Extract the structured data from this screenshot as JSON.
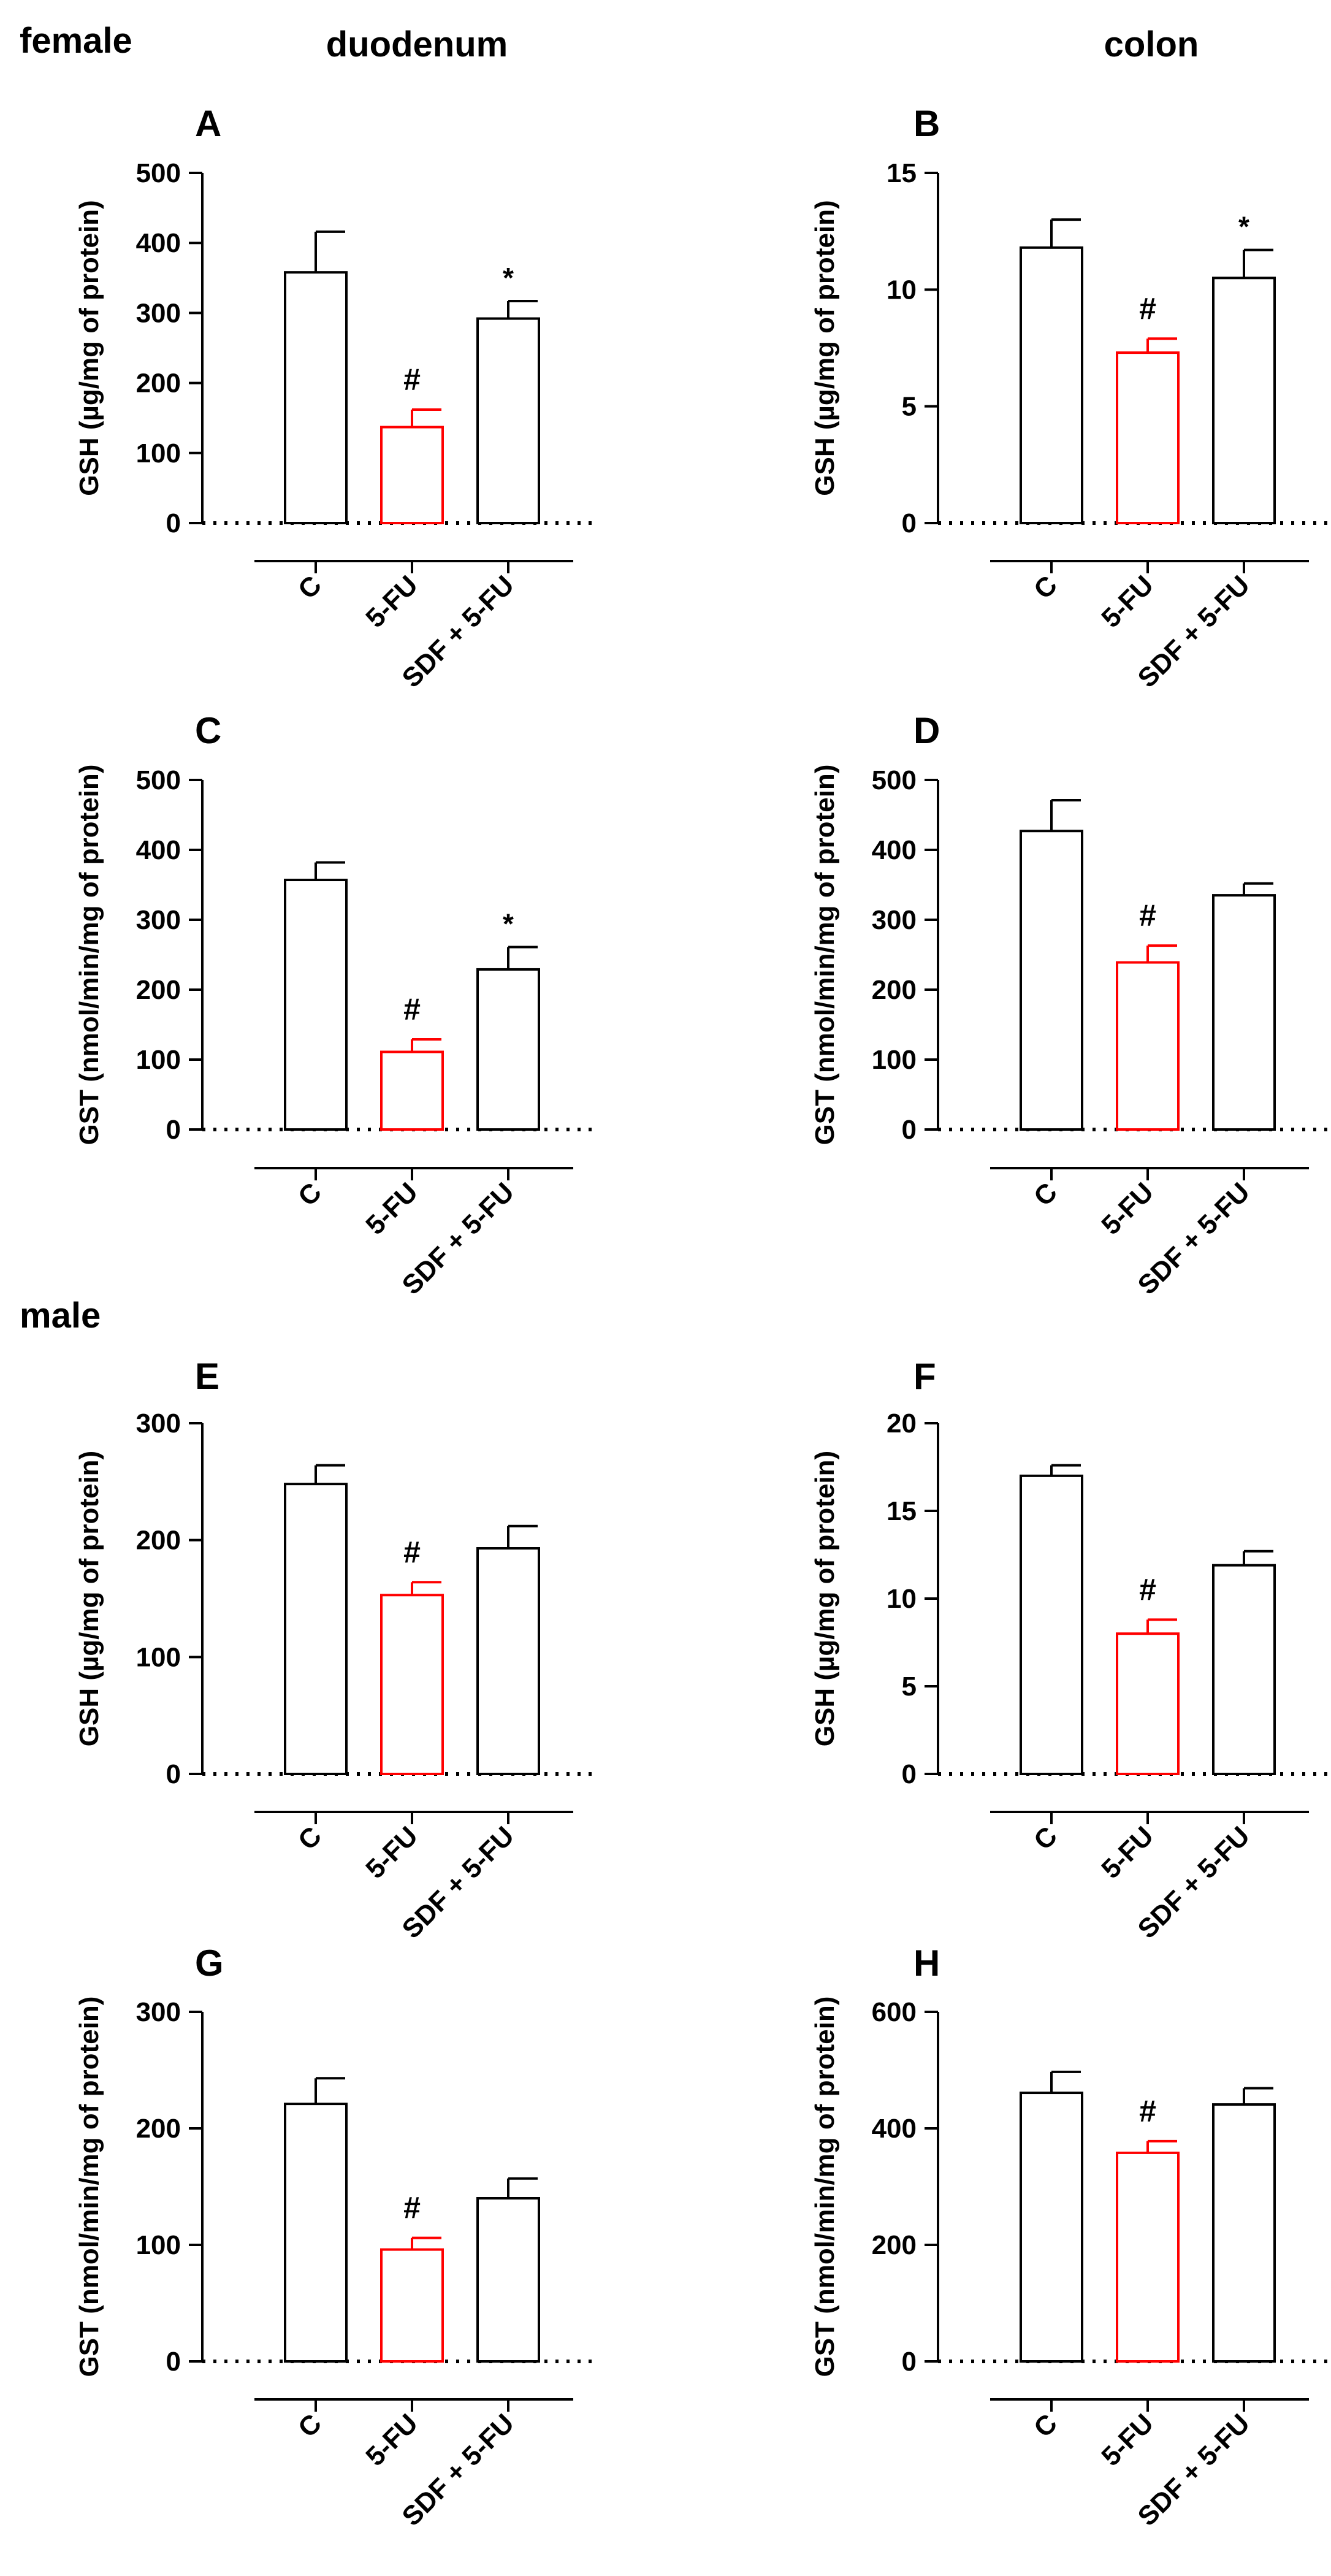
{
  "headers": {
    "female": "female",
    "male": "male",
    "duodenum": "duodenum",
    "colon": "colon"
  },
  "colors": {
    "control": "#000000",
    "treated": "#ff0000"
  },
  "chart_data": [
    {
      "panel": "A",
      "type": "bar",
      "ylabel": "GSH (µg/mg of protein)",
      "categories": [
        "C",
        "5-FU",
        "SDF + 5-FU"
      ],
      "values": [
        358,
        137,
        292
      ],
      "errors": [
        58,
        25,
        25
      ],
      "ylim": [
        0,
        500
      ],
      "yticks": [
        0,
        100,
        200,
        300,
        400,
        500
      ],
      "annotations": [
        "",
        "#",
        "*"
      ]
    },
    {
      "panel": "B",
      "type": "bar",
      "ylabel": "GSH (µg/mg of protein)",
      "categories": [
        "C",
        "5-FU",
        "SDF + 5-FU"
      ],
      "values": [
        11.8,
        7.3,
        10.5
      ],
      "errors": [
        1.2,
        0.6,
        1.2
      ],
      "ylim": [
        0,
        15
      ],
      "yticks": [
        0,
        5,
        10,
        15
      ],
      "annotations": [
        "",
        "#",
        "*"
      ]
    },
    {
      "panel": "C",
      "type": "bar",
      "ylabel": "GST (nmol/min/mg of protein)",
      "categories": [
        "C",
        "5-FU",
        "SDF + 5-FU"
      ],
      "values": [
        357,
        111,
        229
      ],
      "errors": [
        25,
        18,
        32
      ],
      "ylim": [
        0,
        500
      ],
      "yticks": [
        0,
        100,
        200,
        300,
        400,
        500
      ],
      "annotations": [
        "",
        "#",
        "*"
      ]
    },
    {
      "panel": "D",
      "type": "bar",
      "ylabel": "GST (nmol/min/mg of protein)",
      "categories": [
        "C",
        "5-FU",
        "SDF + 5-FU"
      ],
      "values": [
        427,
        239,
        335
      ],
      "errors": [
        44,
        24,
        17
      ],
      "ylim": [
        0,
        500
      ],
      "yticks": [
        0,
        100,
        200,
        300,
        400,
        500
      ],
      "annotations": [
        "",
        "#",
        ""
      ]
    },
    {
      "panel": "E",
      "type": "bar",
      "ylabel": "GSH (µg/mg of protein)",
      "categories": [
        "C",
        "5-FU",
        "SDF + 5-FU"
      ],
      "values": [
        248,
        153,
        193
      ],
      "errors": [
        16,
        11,
        19
      ],
      "ylim": [
        0,
        300
      ],
      "yticks": [
        0,
        100,
        200,
        300
      ],
      "annotations": [
        "",
        "#",
        ""
      ]
    },
    {
      "panel": "F",
      "type": "bar",
      "ylabel": "GSH (µg/mg of protein)",
      "categories": [
        "C",
        "5-FU",
        "SDF + 5-FU"
      ],
      "values": [
        17.0,
        8.0,
        11.9
      ],
      "errors": [
        0.6,
        0.8,
        0.8
      ],
      "ylim": [
        0,
        20
      ],
      "yticks": [
        0,
        5,
        10,
        15,
        20
      ],
      "annotations": [
        "",
        "#",
        ""
      ]
    },
    {
      "panel": "G",
      "type": "bar",
      "ylabel": "GST (nmol/min/mg of protein)",
      "categories": [
        "C",
        "5-FU",
        "SDF + 5-FU"
      ],
      "values": [
        221,
        96,
        140
      ],
      "errors": [
        22,
        10,
        17
      ],
      "ylim": [
        0,
        300
      ],
      "yticks": [
        0,
        100,
        200,
        300
      ],
      "annotations": [
        "",
        "#",
        ""
      ]
    },
    {
      "panel": "H",
      "type": "bar",
      "ylabel": "GST (nmol/min/mg of protein)",
      "categories": [
        "C",
        "5-FU",
        "SDF + 5-FU"
      ],
      "values": [
        461,
        358,
        441
      ],
      "errors": [
        36,
        20,
        28
      ],
      "ylim": [
        0,
        600
      ],
      "yticks": [
        0,
        200,
        400,
        600
      ],
      "annotations": [
        "",
        "#",
        ""
      ]
    }
  ]
}
